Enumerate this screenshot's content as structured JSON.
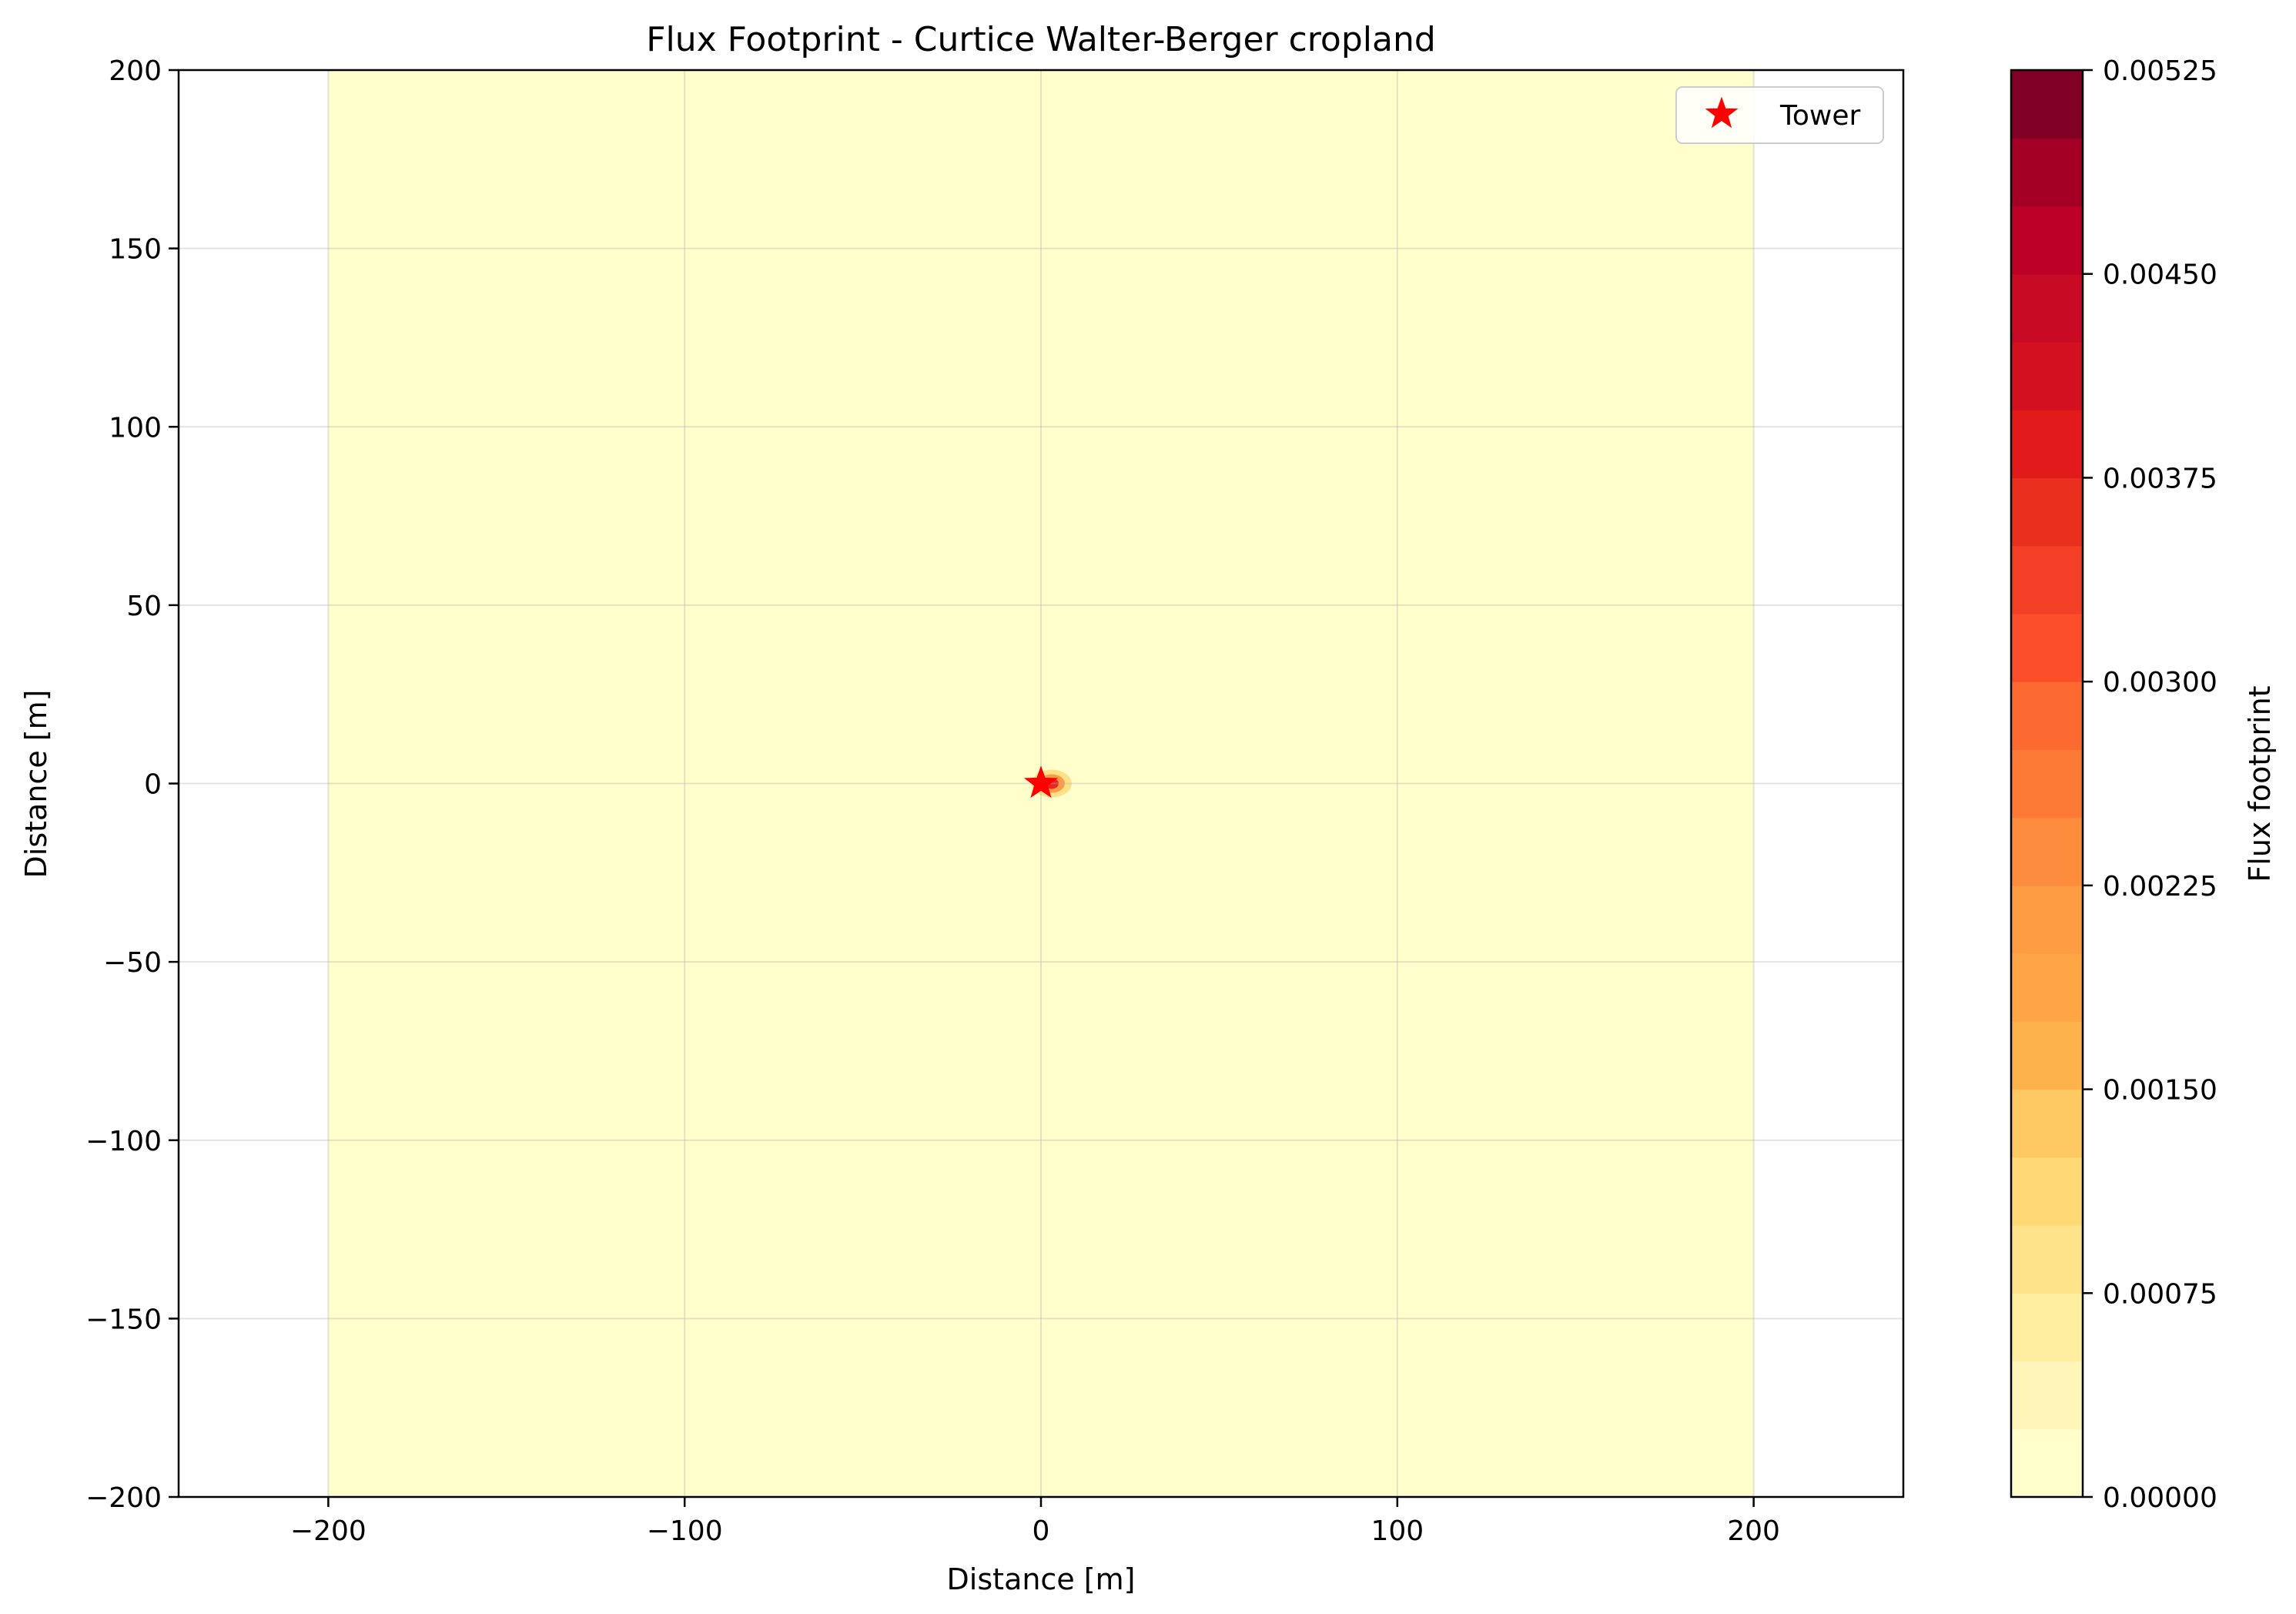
{
  "chart_data": {
    "type": "heatmap",
    "title": "Flux Footprint - Curtice Walter-Berger cropland",
    "xlabel": "Distance [m]",
    "ylabel": "Distance [m]",
    "xlim": [
      -242,
      242
    ],
    "ylim": [
      -200,
      200
    ],
    "xticks": [
      -200,
      -100,
      0,
      100,
      200
    ],
    "xtick_labels": [
      "−200",
      "−100",
      "0",
      "100",
      "200"
    ],
    "yticks": [
      200,
      150,
      100,
      50,
      0,
      -50,
      -100,
      -150,
      -200
    ],
    "ytick_labels": [
      "200",
      "150",
      "100",
      "50",
      "0",
      "−50",
      "−100",
      "−150",
      "−200"
    ],
    "grid": true,
    "footprint_extent_x": [
      -200,
      200
    ],
    "footprint_extent_y": [
      -200,
      200
    ],
    "background_level": 0.0,
    "peak": {
      "x": 3,
      "y": 0,
      "value": 0.00525
    },
    "tower": {
      "x": 0,
      "y": 0,
      "marker": "star",
      "color": "#ff0000"
    },
    "legend": {
      "entries": [
        "Tower"
      ],
      "position": "top-right"
    },
    "colorbar": {
      "label": "Flux footprint",
      "min": 0.0,
      "max": 0.00525,
      "levels": 21,
      "ticks": [
        0.0,
        0.00075,
        0.0015,
        0.00225,
        0.003,
        0.00375,
        0.0045,
        0.00525
      ],
      "tick_labels": [
        "0.00000",
        "0.00075",
        "0.00150",
        "0.00225",
        "0.00300",
        "0.00375",
        "0.00450",
        "0.00525"
      ],
      "colors": [
        "#ffffcc",
        "#fff5b8",
        "#ffeda0",
        "#fee38a",
        "#fed976",
        "#fec862",
        "#feb24c",
        "#fea546",
        "#fd9c42",
        "#fd8d3c",
        "#fc7a36",
        "#fc6a32",
        "#fc4e2a",
        "#f23f26",
        "#e9301f",
        "#e31a1c",
        "#d3101f",
        "#c80a24",
        "#bd0026",
        "#a40026",
        "#800026"
      ]
    }
  }
}
